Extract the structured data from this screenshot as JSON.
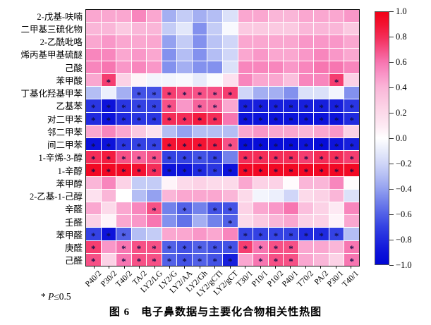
{
  "figure": {
    "caption": "图 6　电子鼻数据与主要化合物相关性热图",
    "note_star": "* ",
    "note_p": "P",
    "note_rest": "≤0.5"
  },
  "chart_data": {
    "type": "heatmap",
    "title": "电子鼻数据与主要化合物相关性热图",
    "legend_position": "right",
    "value_range": [
      -1.0,
      1.0
    ],
    "rows": [
      "2-戊基-呋喃",
      "二甲基三硫化物",
      "2-乙酰吡咯",
      "烯丙基甲基硫醚",
      "己酸",
      "苯甲酸",
      "丁基化羟基甲苯",
      "乙基苯",
      "对二甲苯",
      "邻二甲苯",
      "间二甲苯",
      "1-辛烯-3-醇",
      "1-辛醇",
      "苯甲醇",
      "2-乙基-1-己醇",
      "辛醛",
      "壬醛",
      "苯甲醛",
      "庚醛",
      "己醛"
    ],
    "columns": [
      "P40/2",
      "P30/2",
      "T40/2",
      "TA/2",
      "LY2/LG",
      "LY2/G",
      "LY2/AA",
      "LY2/Gh",
      "LY2/gCTl",
      "LY2/gCT",
      "T30/1",
      "P10/1",
      "P10/2",
      "P40/1",
      "T70/2",
      "PA/2",
      "P30/1",
      "T40/1"
    ],
    "values": [
      [
        0.45,
        0.45,
        0.45,
        0.55,
        0.45,
        -0.35,
        -0.25,
        -0.35,
        -0.3,
        -0.15,
        0.45,
        0.45,
        0.4,
        0.4,
        0.45,
        0.45,
        0.45,
        0.5
      ],
      [
        0.4,
        0.4,
        0.3,
        0.4,
        0.4,
        -0.25,
        -0.12,
        -0.45,
        -0.25,
        -0.03,
        0.3,
        0.3,
        0.3,
        0.3,
        0.4,
        0.4,
        0.4,
        0.3
      ],
      [
        0.45,
        0.5,
        0.45,
        0.45,
        0.45,
        -0.4,
        -0.25,
        -0.45,
        -0.28,
        -0.2,
        0.45,
        0.45,
        0.45,
        0.45,
        0.5,
        0.5,
        0.5,
        0.45
      ],
      [
        0.55,
        0.55,
        0.45,
        0.5,
        0.45,
        -0.45,
        -0.3,
        -0.45,
        -0.3,
        -0.2,
        0.45,
        0.5,
        0.45,
        0.45,
        0.5,
        0.55,
        0.5,
        0.45
      ],
      [
        0.55,
        0.6,
        0.5,
        0.55,
        0.5,
        -0.45,
        -0.35,
        -0.45,
        -0.45,
        -0.15,
        0.55,
        0.55,
        0.55,
        0.5,
        0.55,
        0.6,
        0.6,
        0.55
      ],
      [
        0.45,
        0.75,
        0.25,
        0.05,
        -0.05,
        -0.05,
        -0.03,
        -0.1,
        -0.02,
        0.15,
        0.55,
        0.45,
        0.45,
        0.35,
        0.55,
        0.55,
        0.75,
        0.25
      ],
      [
        -0.3,
        -0.08,
        -0.35,
        -0.65,
        -0.65,
        0.75,
        0.7,
        0.7,
        0.7,
        0.75,
        -0.2,
        -0.35,
        -0.35,
        -0.45,
        -0.15,
        -0.15,
        -0.05,
        -0.45
      ],
      [
        -0.75,
        -0.9,
        -0.75,
        -0.7,
        -0.7,
        0.7,
        0.5,
        0.65,
        0.65,
        0.45,
        -0.85,
        -0.85,
        -0.85,
        -0.85,
        -0.85,
        -0.85,
        -0.85,
        -0.75
      ],
      [
        -0.8,
        -0.9,
        -0.8,
        -0.75,
        -0.75,
        0.8,
        0.8,
        0.85,
        0.8,
        0.6,
        -0.9,
        -0.9,
        -0.9,
        -0.9,
        -0.9,
        -0.9,
        -0.9,
        -0.8
      ],
      [
        0.45,
        0.55,
        0.45,
        0.3,
        0.15,
        -0.3,
        -0.4,
        -0.3,
        -0.3,
        -0.3,
        0.45,
        0.5,
        0.45,
        0.45,
        0.4,
        0.45,
        0.5,
        0.25
      ],
      [
        -0.9,
        -0.9,
        -0.75,
        -0.7,
        -0.7,
        0.9,
        0.9,
        0.9,
        0.85,
        0.7,
        -0.95,
        -0.95,
        -0.95,
        -0.95,
        -0.9,
        -0.95,
        -0.9,
        -0.85
      ],
      [
        0.8,
        0.85,
        0.7,
        0.65,
        0.7,
        -0.7,
        -0.7,
        -0.65,
        -0.7,
        -0.5,
        0.8,
        0.8,
        0.8,
        0.8,
        0.75,
        0.8,
        0.8,
        0.75
      ],
      [
        0.95,
        0.95,
        0.95,
        0.9,
        0.8,
        -0.9,
        -0.9,
        -0.8,
        -0.75,
        -0.9,
        0.95,
        0.95,
        0.95,
        0.95,
        0.95,
        0.95,
        0.95,
        0.95
      ],
      [
        0.4,
        0.55,
        0.25,
        -0.25,
        -0.25,
        0.05,
        0.2,
        0.25,
        0.2,
        0.2,
        0.45,
        0.25,
        0.25,
        0.02,
        0.4,
        0.4,
        0.55,
        0.02
      ],
      [
        0.15,
        0.4,
        0.0,
        -0.3,
        -0.4,
        0.4,
        0.45,
        0.45,
        0.45,
        0.4,
        0.2,
        -0.05,
        -0.08,
        -0.2,
        0.2,
        0.25,
        0.4,
        -0.15
      ],
      [
        0.45,
        0.2,
        0.45,
        0.55,
        0.7,
        -0.5,
        -0.6,
        -0.5,
        -0.65,
        -0.65,
        0.25,
        0.45,
        0.5,
        0.6,
        0.35,
        0.25,
        0.1,
        0.55
      ],
      [
        0.25,
        0.05,
        0.45,
        0.5,
        0.6,
        -0.45,
        -0.55,
        -0.35,
        -0.5,
        -0.6,
        0.2,
        0.3,
        0.4,
        0.45,
        0.25,
        0.25,
        0.05,
        0.45
      ],
      [
        -0.7,
        -0.9,
        -0.6,
        -0.3,
        -0.25,
        0.45,
        0.45,
        0.5,
        0.45,
        0.55,
        -0.7,
        -0.7,
        -0.7,
        -0.7,
        -0.8,
        -0.8,
        -0.7,
        -0.3
      ],
      [
        0.75,
        0.5,
        0.6,
        0.7,
        0.7,
        -0.6,
        -0.65,
        -0.6,
        -0.65,
        -0.65,
        0.75,
        0.6,
        0.7,
        0.7,
        0.45,
        0.45,
        0.4,
        0.6
      ],
      [
        0.7,
        0.25,
        0.6,
        0.7,
        0.7,
        -0.6,
        -0.65,
        -0.6,
        -0.65,
        -0.85,
        0.45,
        0.6,
        0.7,
        0.7,
        0.45,
        0.4,
        0.25,
        0.6
      ]
    ],
    "significant": [
      [
        0,
        0,
        0,
        0,
        0,
        0,
        0,
        0,
        0,
        0,
        0,
        0,
        0,
        0,
        0,
        0,
        0,
        0
      ],
      [
        0,
        0,
        0,
        0,
        0,
        0,
        0,
        0,
        0,
        0,
        0,
        0,
        0,
        0,
        0,
        0,
        0,
        0
      ],
      [
        0,
        0,
        0,
        0,
        0,
        0,
        0,
        0,
        0,
        0,
        0,
        0,
        0,
        0,
        0,
        0,
        0,
        0
      ],
      [
        0,
        0,
        0,
        0,
        0,
        0,
        0,
        0,
        0,
        0,
        0,
        0,
        0,
        0,
        0,
        0,
        0,
        0
      ],
      [
        0,
        0,
        0,
        0,
        0,
        0,
        0,
        0,
        0,
        0,
        0,
        0,
        0,
        0,
        0,
        0,
        0,
        0
      ],
      [
        0,
        1,
        0,
        0,
        0,
        0,
        0,
        0,
        0,
        0,
        0,
        0,
        0,
        0,
        0,
        0,
        1,
        0
      ],
      [
        0,
        0,
        0,
        1,
        1,
        1,
        1,
        1,
        1,
        1,
        0,
        0,
        0,
        0,
        0,
        0,
        0,
        0
      ],
      [
        1,
        1,
        1,
        1,
        1,
        1,
        0,
        1,
        1,
        0,
        1,
        1,
        1,
        1,
        1,
        1,
        1,
        1
      ],
      [
        1,
        1,
        1,
        1,
        1,
        1,
        1,
        1,
        1,
        0,
        1,
        1,
        1,
        1,
        1,
        1,
        1,
        1
      ],
      [
        0,
        0,
        0,
        0,
        0,
        0,
        0,
        0,
        0,
        0,
        0,
        0,
        0,
        0,
        0,
        0,
        0,
        0
      ],
      [
        1,
        1,
        1,
        1,
        1,
        1,
        1,
        1,
        1,
        1,
        1,
        1,
        1,
        1,
        1,
        1,
        1,
        1
      ],
      [
        1,
        1,
        1,
        1,
        1,
        1,
        1,
        1,
        1,
        0,
        1,
        1,
        1,
        1,
        1,
        1,
        1,
        1
      ],
      [
        1,
        1,
        1,
        1,
        1,
        1,
        1,
        1,
        1,
        1,
        1,
        1,
        1,
        1,
        1,
        1,
        1,
        1
      ],
      [
        0,
        0,
        0,
        0,
        0,
        0,
        0,
        0,
        0,
        0,
        0,
        0,
        0,
        0,
        0,
        0,
        0,
        0
      ],
      [
        0,
        0,
        0,
        0,
        0,
        0,
        0,
        0,
        0,
        0,
        0,
        0,
        0,
        0,
        0,
        0,
        0,
        0
      ],
      [
        0,
        0,
        0,
        0,
        1,
        0,
        1,
        0,
        1,
        1,
        0,
        0,
        0,
        0,
        0,
        0,
        0,
        0
      ],
      [
        0,
        0,
        0,
        0,
        0,
        0,
        0,
        0,
        0,
        1,
        0,
        0,
        0,
        0,
        0,
        0,
        0,
        0
      ],
      [
        1,
        1,
        1,
        0,
        0,
        0,
        0,
        0,
        0,
        0,
        1,
        1,
        1,
        1,
        1,
        1,
        1,
        0
      ],
      [
        1,
        0,
        1,
        1,
        1,
        1,
        1,
        1,
        1,
        1,
        1,
        1,
        1,
        1,
        0,
        0,
        0,
        1
      ],
      [
        1,
        0,
        1,
        1,
        1,
        1,
        1,
        1,
        1,
        1,
        0,
        1,
        1,
        1,
        0,
        0,
        0,
        1
      ]
    ],
    "colorbar": {
      "ticks": [
        "1.0",
        "0.8",
        "0.6",
        "0.4",
        "0.2",
        "0.0",
        "−0.2",
        "−0.4",
        "−0.6",
        "−0.8",
        "−1.0"
      ],
      "max_color": "#f20016",
      "mid_color": "#ffffff",
      "min_color": "#0006d5"
    },
    "significance_marker": "*"
  }
}
